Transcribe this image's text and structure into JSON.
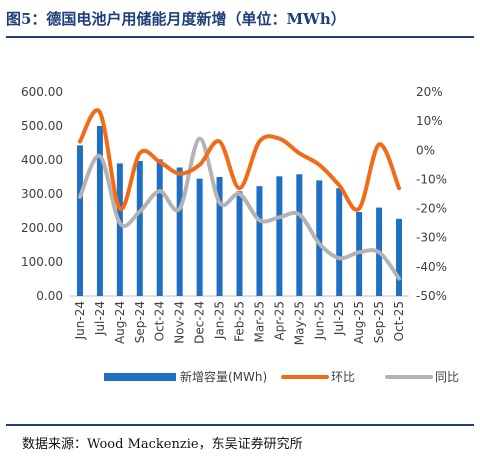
{
  "figure_title": "图5：德国电池户用储能月度新增（单位：MWh）",
  "source": "数据来源：Wood Mackenzie，东吴证券研究所",
  "colors": {
    "bar": "#1f6fc5",
    "mom": "#f26b17",
    "yoy": "#b3b3b3",
    "title": "#1f3f7a"
  },
  "chart_data": {
    "type": "bar",
    "categories": [
      "Jun-24",
      "Jul-24",
      "Aug-24",
      "Sep-24",
      "Oct-24",
      "Nov-24",
      "Dec-24",
      "Jan-25",
      "Feb-25",
      "Mar-25",
      "Apr-25",
      "May-25",
      "Jun-25",
      "Jul-25",
      "Aug-25",
      "Sep-25",
      "Oct-25"
    ],
    "series": [
      {
        "name": "新增容量(MWh)",
        "type": "bar",
        "axis": "left",
        "values": [
          443,
          500,
          390,
          397,
          402,
          378,
          345,
          350,
          308,
          323,
          352,
          358,
          340,
          317,
          247,
          260,
          227
        ]
      },
      {
        "name": "环比",
        "type": "line",
        "axis": "right",
        "unit": "%",
        "values": [
          3,
          13,
          -20,
          -1,
          -4,
          -8,
          -5,
          3,
          -13,
          3,
          4,
          -1,
          -5,
          -12,
          -20,
          2,
          -13
        ]
      },
      {
        "name": "同比",
        "type": "line",
        "axis": "right",
        "unit": "%",
        "values": [
          -16,
          -2,
          -25,
          -21,
          -14,
          -20,
          4,
          -18,
          -15,
          -24,
          -23,
          -22,
          -32,
          -37,
          -35,
          -35,
          -44
        ]
      }
    ],
    "y_left": {
      "ticks": [
        "0.00",
        "100.00",
        "200.00",
        "300.00",
        "400.00",
        "500.00",
        "600.00"
      ],
      "ylim": [
        0,
        600
      ]
    },
    "y_right": {
      "ticks": [
        "-50%",
        "-40%",
        "-30%",
        "-20%",
        "-10%",
        "0%",
        "10%",
        "20%"
      ],
      "ylim": [
        -50,
        20
      ]
    },
    "legend_position": "bottom",
    "grid": false
  }
}
